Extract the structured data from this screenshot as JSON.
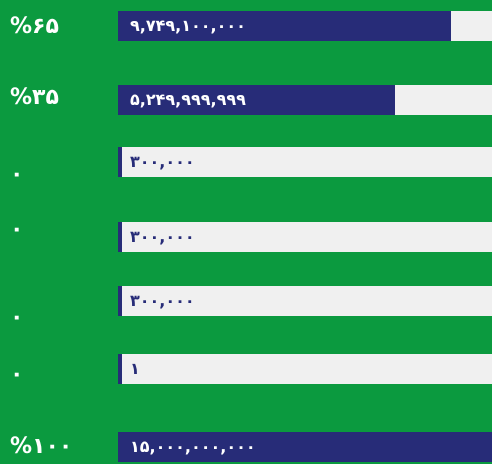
{
  "rows": [
    {
      "percent": "%۶۵",
      "amount": "۹,۷۴۹,۱۰۰,۰۰۰",
      "fill": 89
    },
    {
      "percent": "%۳۵",
      "amount": "۵,۲۴۹,۹۹۹,۹۹۹",
      "fill": 74
    },
    {
      "percent": "۰",
      "amount": "۳۰۰,۰۰۰",
      "fill": 1
    },
    {
      "percent": "۰",
      "amount": "۳۰۰,۰۰۰",
      "fill": 1
    },
    {
      "percent": "۰",
      "amount": "۳۰۰,۰۰۰",
      "fill": 1
    },
    {
      "percent": "۰",
      "amount": "۱",
      "fill": 1
    },
    {
      "percent": "%۱۰۰",
      "amount": "۱۵,۰۰۰,۰۰۰,۰۰۰",
      "fill": 100
    }
  ]
}
